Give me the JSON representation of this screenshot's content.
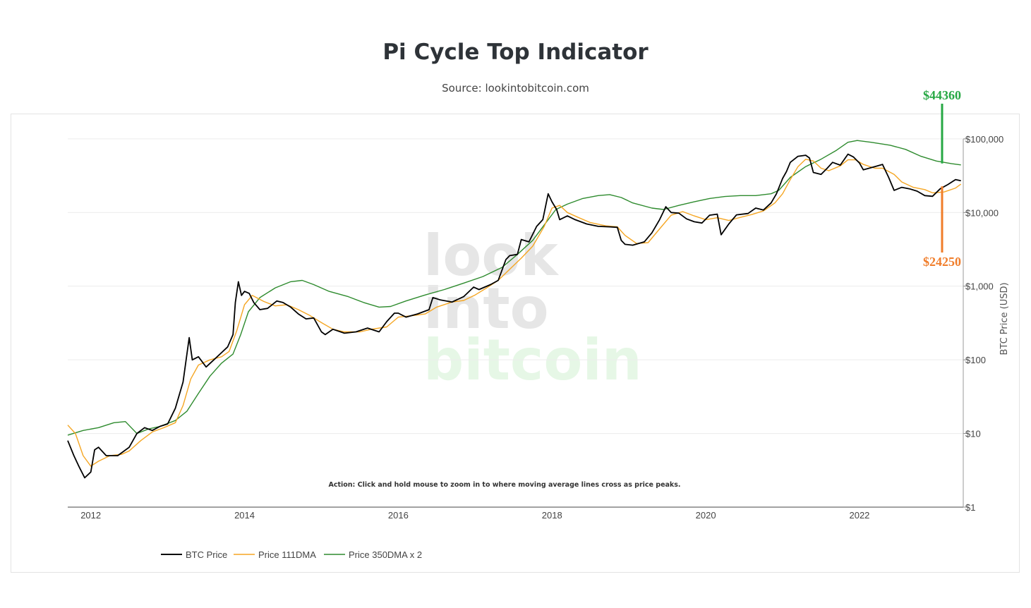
{
  "title": "Pi Cycle Top Indicator",
  "subtitle": "Source: lookintobitcoin.com",
  "watermark": [
    "look",
    "into",
    "bitcoin"
  ],
  "action_note": "Action: Click and hold mouse to zoom in to where moving average lines cross as price peaks.",
  "colors": {
    "btc": "#000000",
    "dma111": "#f5a623",
    "dma350x2": "#2e8b2e",
    "ann_high": "#27a844",
    "ann_low": "#f07d2a",
    "watermark_gray": "#e6e6e6",
    "watermark_green": "#e6f7e6"
  },
  "chart_data": {
    "type": "line",
    "title": "Pi Cycle Top Indicator",
    "ylabel": "BTC Price (USD)",
    "yscale": "log",
    "ylim": [
      1,
      130000
    ],
    "xlim": [
      2011.7,
      2023.35
    ],
    "x_ticks": [
      2012,
      2014,
      2016,
      2018,
      2020,
      2022
    ],
    "x_tick_labels": [
      "2012",
      "2014",
      "2016",
      "2018",
      "2020",
      "2022"
    ],
    "y_ticks": [
      1,
      10,
      100,
      1000,
      10000,
      100000
    ],
    "y_tick_labels": [
      "$1",
      "$10",
      "$100",
      "$1,000",
      "$10,000",
      "$100,000"
    ],
    "legend_position": "bottom-left",
    "series": [
      {
        "name": "BTC Price",
        "color": "#000000",
        "points": [
          [
            2011.7,
            8
          ],
          [
            2011.78,
            5
          ],
          [
            2011.85,
            3.5
          ],
          [
            2011.92,
            2.5
          ],
          [
            2012.0,
            3
          ],
          [
            2012.05,
            6
          ],
          [
            2012.1,
            6.5
          ],
          [
            2012.2,
            5
          ],
          [
            2012.35,
            5
          ],
          [
            2012.5,
            6.5
          ],
          [
            2012.6,
            10
          ],
          [
            2012.7,
            12
          ],
          [
            2012.8,
            11
          ],
          [
            2012.9,
            12.5
          ],
          [
            2013.0,
            13.5
          ],
          [
            2013.1,
            22
          ],
          [
            2013.2,
            50
          ],
          [
            2013.28,
            200
          ],
          [
            2013.32,
            100
          ],
          [
            2013.4,
            110
          ],
          [
            2013.5,
            80
          ],
          [
            2013.6,
            100
          ],
          [
            2013.7,
            125
          ],
          [
            2013.78,
            150
          ],
          [
            2013.85,
            220
          ],
          [
            2013.88,
            600
          ],
          [
            2013.92,
            1150
          ],
          [
            2013.96,
            750
          ],
          [
            2014.0,
            850
          ],
          [
            2014.06,
            800
          ],
          [
            2014.12,
            600
          ],
          [
            2014.2,
            480
          ],
          [
            2014.3,
            500
          ],
          [
            2014.42,
            630
          ],
          [
            2014.5,
            600
          ],
          [
            2014.6,
            520
          ],
          [
            2014.7,
            420
          ],
          [
            2014.8,
            360
          ],
          [
            2014.9,
            370
          ],
          [
            2015.0,
            240
          ],
          [
            2015.05,
            220
          ],
          [
            2015.15,
            260
          ],
          [
            2015.3,
            230
          ],
          [
            2015.45,
            240
          ],
          [
            2015.6,
            270
          ],
          [
            2015.75,
            240
          ],
          [
            2015.85,
            330
          ],
          [
            2015.95,
            430
          ],
          [
            2016.0,
            430
          ],
          [
            2016.1,
            380
          ],
          [
            2016.25,
            420
          ],
          [
            2016.4,
            480
          ],
          [
            2016.45,
            700
          ],
          [
            2016.55,
            650
          ],
          [
            2016.7,
            610
          ],
          [
            2016.85,
            720
          ],
          [
            2016.98,
            970
          ],
          [
            2017.05,
            900
          ],
          [
            2017.2,
            1050
          ],
          [
            2017.3,
            1200
          ],
          [
            2017.4,
            2300
          ],
          [
            2017.45,
            2600
          ],
          [
            2017.55,
            2700
          ],
          [
            2017.6,
            4300
          ],
          [
            2017.7,
            4000
          ],
          [
            2017.8,
            6500
          ],
          [
            2017.88,
            8000
          ],
          [
            2017.95,
            18000
          ],
          [
            2018.0,
            14000
          ],
          [
            2018.06,
            11000
          ],
          [
            2018.1,
            8000
          ],
          [
            2018.2,
            9000
          ],
          [
            2018.3,
            8000
          ],
          [
            2018.45,
            7000
          ],
          [
            2018.6,
            6500
          ],
          [
            2018.75,
            6400
          ],
          [
            2018.85,
            6300
          ],
          [
            2018.9,
            4200
          ],
          [
            2018.95,
            3700
          ],
          [
            2019.05,
            3600
          ],
          [
            2019.2,
            4000
          ],
          [
            2019.3,
            5300
          ],
          [
            2019.4,
            8000
          ],
          [
            2019.48,
            12000
          ],
          [
            2019.55,
            10000
          ],
          [
            2019.65,
            9800
          ],
          [
            2019.75,
            8200
          ],
          [
            2019.85,
            7500
          ],
          [
            2019.95,
            7200
          ],
          [
            2020.05,
            9200
          ],
          [
            2020.15,
            9500
          ],
          [
            2020.2,
            5000
          ],
          [
            2020.3,
            7000
          ],
          [
            2020.4,
            9300
          ],
          [
            2020.55,
            9700
          ],
          [
            2020.65,
            11500
          ],
          [
            2020.75,
            10800
          ],
          [
            2020.85,
            13500
          ],
          [
            2020.92,
            18000
          ],
          [
            2021.0,
            29000
          ],
          [
            2021.05,
            36000
          ],
          [
            2021.1,
            48000
          ],
          [
            2021.2,
            58000
          ],
          [
            2021.3,
            60000
          ],
          [
            2021.35,
            55000
          ],
          [
            2021.4,
            35000
          ],
          [
            2021.5,
            33000
          ],
          [
            2021.58,
            40000
          ],
          [
            2021.65,
            48000
          ],
          [
            2021.75,
            44000
          ],
          [
            2021.85,
            62000
          ],
          [
            2021.92,
            57000
          ],
          [
            2022.0,
            47000
          ],
          [
            2022.05,
            38000
          ],
          [
            2022.2,
            42000
          ],
          [
            2022.3,
            45000
          ],
          [
            2022.38,
            30000
          ],
          [
            2022.45,
            20000
          ],
          [
            2022.55,
            22000
          ],
          [
            2022.65,
            21000
          ],
          [
            2022.75,
            19500
          ],
          [
            2022.85,
            17000
          ],
          [
            2022.95,
            16600
          ],
          [
            2023.05,
            21000
          ],
          [
            2023.15,
            24000
          ],
          [
            2023.25,
            28000
          ],
          [
            2023.32,
            27000
          ]
        ]
      },
      {
        "name": "Price 111DMA",
        "color": "#f5a623",
        "points": [
          [
            2011.7,
            13
          ],
          [
            2011.8,
            10
          ],
          [
            2011.9,
            5
          ],
          [
            2012.0,
            3.6
          ],
          [
            2012.1,
            4.2
          ],
          [
            2012.25,
            5
          ],
          [
            2012.4,
            5.2
          ],
          [
            2012.5,
            5.8
          ],
          [
            2012.65,
            8
          ],
          [
            2012.8,
            10.5
          ],
          [
            2012.95,
            12
          ],
          [
            2013.1,
            14
          ],
          [
            2013.2,
            24
          ],
          [
            2013.3,
            55
          ],
          [
            2013.4,
            85
          ],
          [
            2013.55,
            100
          ],
          [
            2013.7,
            110
          ],
          [
            2013.8,
            130
          ],
          [
            2013.9,
            250
          ],
          [
            2014.0,
            560
          ],
          [
            2014.1,
            750
          ],
          [
            2014.25,
            620
          ],
          [
            2014.4,
            540
          ],
          [
            2014.55,
            560
          ],
          [
            2014.7,
            480
          ],
          [
            2014.85,
            400
          ],
          [
            2015.0,
            320
          ],
          [
            2015.15,
            260
          ],
          [
            2015.3,
            240
          ],
          [
            2015.5,
            240
          ],
          [
            2015.65,
            260
          ],
          [
            2015.85,
            280
          ],
          [
            2016.0,
            380
          ],
          [
            2016.2,
            400
          ],
          [
            2016.35,
            420
          ],
          [
            2016.5,
            520
          ],
          [
            2016.7,
            610
          ],
          [
            2016.85,
            640
          ],
          [
            2017.0,
            760
          ],
          [
            2017.15,
            950
          ],
          [
            2017.3,
            1200
          ],
          [
            2017.45,
            1700
          ],
          [
            2017.6,
            2400
          ],
          [
            2017.75,
            3500
          ],
          [
            2017.9,
            6500
          ],
          [
            2018.0,
            11500
          ],
          [
            2018.1,
            12500
          ],
          [
            2018.2,
            10000
          ],
          [
            2018.35,
            8500
          ],
          [
            2018.5,
            7300
          ],
          [
            2018.7,
            6600
          ],
          [
            2018.85,
            6400
          ],
          [
            2018.95,
            4900
          ],
          [
            2019.1,
            3800
          ],
          [
            2019.25,
            3900
          ],
          [
            2019.4,
            6000
          ],
          [
            2019.55,
            9200
          ],
          [
            2019.7,
            10300
          ],
          [
            2019.85,
            9000
          ],
          [
            2020.0,
            8000
          ],
          [
            2020.15,
            8500
          ],
          [
            2020.3,
            7800
          ],
          [
            2020.45,
            8600
          ],
          [
            2020.6,
            9400
          ],
          [
            2020.75,
            10500
          ],
          [
            2020.9,
            13500
          ],
          [
            2021.0,
            18000
          ],
          [
            2021.1,
            28000
          ],
          [
            2021.2,
            42000
          ],
          [
            2021.3,
            53000
          ],
          [
            2021.4,
            50000
          ],
          [
            2021.5,
            40000
          ],
          [
            2021.6,
            37000
          ],
          [
            2021.75,
            43000
          ],
          [
            2021.85,
            52000
          ],
          [
            2021.95,
            52000
          ],
          [
            2022.05,
            45000
          ],
          [
            2022.2,
            40000
          ],
          [
            2022.3,
            40000
          ],
          [
            2022.45,
            33000
          ],
          [
            2022.55,
            26000
          ],
          [
            2022.7,
            22000
          ],
          [
            2022.85,
            20500
          ],
          [
            2022.95,
            18500
          ],
          [
            2023.1,
            19000
          ],
          [
            2023.25,
            21500
          ],
          [
            2023.32,
            24250
          ]
        ]
      },
      {
        "name": "Price 350DMA x 2",
        "color": "#2e8b2e",
        "points": [
          [
            2011.7,
            9.5
          ],
          [
            2011.9,
            11
          ],
          [
            2012.1,
            12
          ],
          [
            2012.3,
            14
          ],
          [
            2012.45,
            14.5
          ],
          [
            2012.6,
            10
          ],
          [
            2012.75,
            11.5
          ],
          [
            2012.9,
            12.5
          ],
          [
            2013.1,
            15
          ],
          [
            2013.25,
            20
          ],
          [
            2013.4,
            35
          ],
          [
            2013.55,
            60
          ],
          [
            2013.7,
            90
          ],
          [
            2013.85,
            120
          ],
          [
            2013.95,
            220
          ],
          [
            2014.05,
            450
          ],
          [
            2014.2,
            700
          ],
          [
            2014.4,
            950
          ],
          [
            2014.6,
            1150
          ],
          [
            2014.75,
            1200
          ],
          [
            2014.9,
            1050
          ],
          [
            2015.1,
            850
          ],
          [
            2015.35,
            720
          ],
          [
            2015.55,
            600
          ],
          [
            2015.75,
            520
          ],
          [
            2015.9,
            530
          ],
          [
            2016.1,
            630
          ],
          [
            2016.35,
            760
          ],
          [
            2016.6,
            900
          ],
          [
            2016.85,
            1100
          ],
          [
            2017.1,
            1350
          ],
          [
            2017.35,
            1800
          ],
          [
            2017.55,
            2700
          ],
          [
            2017.75,
            4200
          ],
          [
            2017.9,
            6800
          ],
          [
            2018.05,
            11000
          ],
          [
            2018.2,
            13000
          ],
          [
            2018.4,
            15500
          ],
          [
            2018.6,
            17000
          ],
          [
            2018.75,
            17500
          ],
          [
            2018.9,
            16000
          ],
          [
            2019.05,
            13500
          ],
          [
            2019.3,
            11500
          ],
          [
            2019.45,
            11000
          ],
          [
            2019.65,
            12500
          ],
          [
            2019.85,
            14000
          ],
          [
            2020.05,
            15500
          ],
          [
            2020.25,
            16500
          ],
          [
            2020.45,
            17000
          ],
          [
            2020.65,
            17000
          ],
          [
            2020.85,
            18000
          ],
          [
            2020.95,
            20000
          ],
          [
            2021.1,
            30000
          ],
          [
            2021.3,
            42000
          ],
          [
            2021.5,
            53000
          ],
          [
            2021.7,
            70000
          ],
          [
            2021.85,
            90000
          ],
          [
            2021.97,
            95000
          ],
          [
            2022.15,
            90000
          ],
          [
            2022.4,
            82000
          ],
          [
            2022.6,
            72000
          ],
          [
            2022.8,
            58000
          ],
          [
            2023.0,
            50000
          ],
          [
            2023.2,
            46000
          ],
          [
            2023.32,
            44360
          ]
        ]
      }
    ],
    "annotations": [
      {
        "label": "$44360",
        "value": 44360,
        "color": "#27a844"
      },
      {
        "label": "$24250",
        "value": 24250,
        "color": "#f07d2a"
      }
    ]
  }
}
